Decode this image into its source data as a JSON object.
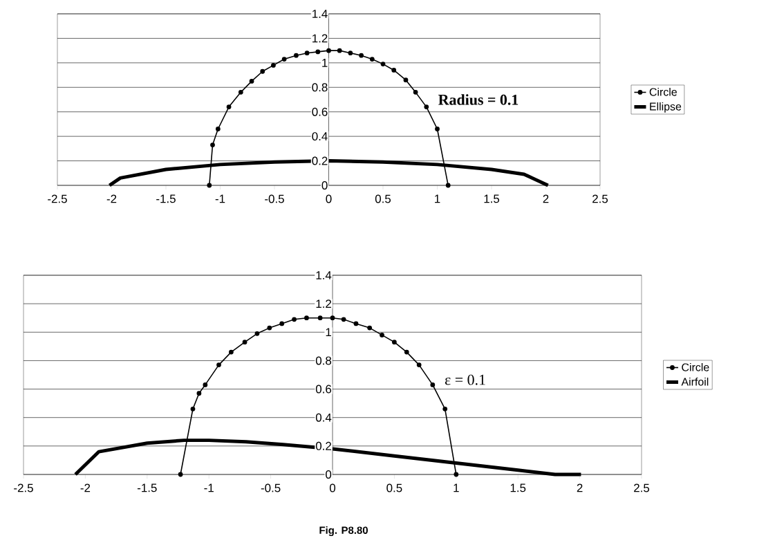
{
  "chart_data": [
    {
      "type": "line",
      "annotations": [
        "**Radius = 0.1**"
      ],
      "xlim": [
        -2.5,
        2.5
      ],
      "ylim": [
        0,
        1.4
      ],
      "xticks": [
        -2.5,
        -2,
        -1.5,
        -1,
        -0.5,
        0,
        0.5,
        1,
        1.5,
        2,
        2.5
      ],
      "yticks": [
        0,
        0.2,
        0.4,
        0.6,
        0.8,
        1,
        1.2,
        1.4
      ],
      "grid": "y",
      "legend": "right",
      "series": [
        {
          "name": "Circle",
          "color": "#000000",
          "marker": "circle",
          "x": [
            -1.1,
            -1.07,
            -1.02,
            -0.92,
            -0.81,
            -0.71,
            -0.61,
            -0.51,
            -0.41,
            -0.3,
            -0.2,
            -0.1,
            0,
            0.1,
            0.2,
            0.3,
            0.4,
            0.5,
            0.6,
            0.71,
            0.8,
            0.9,
            1.0,
            1.1
          ],
          "values": [
            0,
            0.33,
            0.46,
            0.64,
            0.76,
            0.85,
            0.93,
            0.98,
            1.03,
            1.06,
            1.08,
            1.09,
            1.1,
            1.1,
            1.08,
            1.06,
            1.03,
            0.99,
            0.94,
            0.86,
            0.76,
            0.64,
            0.46,
            0
          ]
        },
        {
          "name": "Ellipse",
          "color": "#000000",
          "marker": "none",
          "x": [
            -2.02,
            -1.92,
            -1.5,
            -1,
            -0.5,
            0,
            0.5,
            1,
            1.5,
            1.8,
            2.02
          ],
          "values": [
            0,
            0.06,
            0.13,
            0.17,
            0.19,
            0.2,
            0.19,
            0.17,
            0.13,
            0.09,
            0
          ]
        }
      ]
    },
    {
      "type": "line",
      "annotations": [
        "ε = 0.1",
        "**Fig.  P8.80**"
      ],
      "xlim": [
        -2.5,
        2.5
      ],
      "ylim": [
        0,
        1.4
      ],
      "xticks": [
        -2.5,
        -2,
        -1.5,
        -1,
        -0.5,
        0,
        0.5,
        1,
        1.5,
        2,
        2.5
      ],
      "yticks": [
        0,
        0.2,
        0.4,
        0.6,
        0.8,
        1,
        1.2,
        1.4
      ],
      "grid": "y",
      "legend": "right",
      "series": [
        {
          "name": "Circle",
          "color": "#000000",
          "marker": "circle",
          "x": [
            -1.23,
            -1.13,
            -1.08,
            -1.03,
            -0.92,
            -0.82,
            -0.71,
            -0.61,
            -0.51,
            -0.41,
            -0.31,
            -0.21,
            -0.1,
            0,
            0.09,
            0.19,
            0.3,
            0.4,
            0.5,
            0.6,
            0.7,
            0.81,
            0.91,
            1.0
          ],
          "values": [
            0,
            0.46,
            0.57,
            0.63,
            0.77,
            0.86,
            0.93,
            0.99,
            1.03,
            1.06,
            1.09,
            1.1,
            1.1,
            1.1,
            1.09,
            1.06,
            1.03,
            0.98,
            0.93,
            0.86,
            0.77,
            0.63,
            0.46,
            0
          ]
        },
        {
          "name": "Airfoil",
          "color": "#000000",
          "marker": "none",
          "x": [
            -2.08,
            -1.89,
            -1.5,
            -1.2,
            -1,
            -0.7,
            -0.4,
            0,
            0.5,
            1,
            1.5,
            1.8,
            2.01
          ],
          "values": [
            0,
            0.16,
            0.22,
            0.24,
            0.24,
            0.23,
            0.21,
            0.18,
            0.13,
            0.08,
            0.03,
            0.0,
            0
          ]
        }
      ]
    }
  ]
}
